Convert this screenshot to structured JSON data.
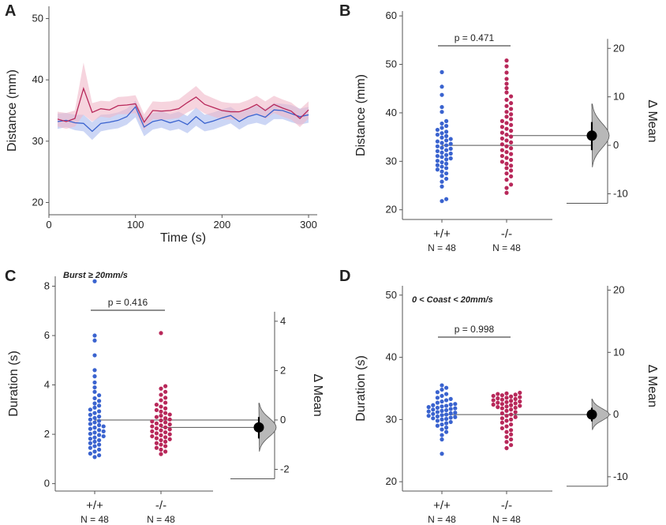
{
  "colors": {
    "wt": "#3a63cf",
    "ko": "#b8285a",
    "wt_band": "#aabbee",
    "ko_band": "#f0b8c8"
  },
  "chart_data": [
    {
      "panel": "A",
      "type": "line",
      "title": "",
      "xlabel": "Time (s)",
      "ylabel": "Distance (mm)",
      "xlim": [
        0,
        310
      ],
      "ylim": [
        18,
        52
      ],
      "xticks": [
        0,
        100,
        200,
        300
      ],
      "yticks": [
        20,
        30,
        40,
        50
      ],
      "series": [
        {
          "name": "+/+",
          "x": [
            10,
            20,
            30,
            40,
            50,
            60,
            70,
            80,
            90,
            100,
            110,
            120,
            130,
            140,
            150,
            160,
            170,
            180,
            190,
            200,
            210,
            220,
            230,
            240,
            250,
            260,
            270,
            280,
            290,
            300
          ],
          "y": [
            33.2,
            33.4,
            33.0,
            32.9,
            31.6,
            32.9,
            33.1,
            33.4,
            34.0,
            35.6,
            32.3,
            33.2,
            33.5,
            33.0,
            33.4,
            32.7,
            34.0,
            32.9,
            33.3,
            33.8,
            34.2,
            33.2,
            34.0,
            34.4,
            33.9,
            35.1,
            35.0,
            34.5,
            34.0,
            34.3
          ],
          "lo": [
            32.0,
            32.3,
            31.8,
            31.6,
            30.2,
            31.6,
            31.9,
            32.1,
            32.7,
            33.9,
            30.8,
            31.9,
            32.2,
            31.7,
            32.0,
            31.3,
            32.5,
            31.6,
            31.9,
            32.4,
            32.9,
            31.9,
            32.7,
            33.0,
            32.6,
            33.6,
            33.6,
            33.1,
            32.7,
            33.0
          ],
          "hi": [
            34.5,
            34.6,
            34.3,
            34.3,
            33.1,
            34.3,
            34.4,
            34.7,
            35.3,
            36.6,
            33.8,
            34.6,
            34.9,
            34.4,
            34.8,
            34.1,
            35.5,
            34.3,
            34.7,
            35.2,
            35.6,
            34.6,
            35.4,
            35.8,
            35.3,
            36.2,
            36.1,
            35.9,
            35.3,
            35.6
          ]
        },
        {
          "name": "-/-",
          "x": [
            10,
            20,
            30,
            40,
            50,
            60,
            70,
            80,
            90,
            100,
            110,
            120,
            130,
            140,
            150,
            160,
            170,
            180,
            190,
            200,
            210,
            220,
            230,
            240,
            250,
            260,
            270,
            280,
            290,
            300
          ],
          "y": [
            33.6,
            33.2,
            33.7,
            38.6,
            34.7,
            35.3,
            35.1,
            35.8,
            35.9,
            36.1,
            33.1,
            35.0,
            34.9,
            35.0,
            35.3,
            36.3,
            37.2,
            36.0,
            35.5,
            35.0,
            34.8,
            34.8,
            35.3,
            36.0,
            35.0,
            36.0,
            35.4,
            34.9,
            33.7,
            35.1
          ],
          "lo": [
            32.4,
            32.0,
            32.4,
            34.3,
            33.2,
            34.0,
            33.8,
            34.4,
            34.4,
            34.6,
            31.8,
            33.6,
            33.5,
            33.6,
            33.8,
            34.7,
            35.4,
            34.5,
            34.0,
            33.6,
            33.5,
            33.5,
            33.9,
            34.6,
            33.6,
            34.6,
            34.0,
            33.5,
            32.3,
            33.7
          ],
          "hi": [
            34.8,
            34.6,
            35.0,
            42.8,
            36.2,
            36.6,
            36.5,
            37.2,
            37.3,
            37.5,
            34.4,
            36.5,
            36.4,
            36.5,
            36.8,
            37.9,
            39.0,
            37.6,
            37.0,
            36.4,
            36.2,
            36.2,
            36.7,
            37.4,
            36.5,
            37.4,
            36.8,
            36.3,
            35.2,
            36.5
          ]
        }
      ]
    },
    {
      "panel": "B",
      "type": "scatter",
      "subtitle": "",
      "ylabel": "Distance (mm)",
      "y2label": "Δ Mean",
      "categories": [
        "+/+",
        "-/-"
      ],
      "n_labels": [
        "N = 48",
        "N = 48"
      ],
      "ylim": [
        18,
        61
      ],
      "yticks": [
        20,
        30,
        40,
        50,
        60
      ],
      "y2ticks": [
        -10,
        0,
        10,
        20
      ],
      "p_value": "p = 0.471",
      "means": [
        33.3,
        35.3
      ],
      "delta_mean": 2.0,
      "delta_ci": [
        -1.0,
        4.8
      ],
      "groups": [
        [
          21.8,
          22.2,
          24.8,
          25.8,
          26.4,
          27.0,
          27.5,
          27.9,
          28.3,
          28.6,
          28.9,
          29.2,
          29.5,
          29.8,
          30.1,
          30.4,
          30.6,
          30.9,
          31.1,
          31.3,
          31.6,
          31.8,
          32.1,
          32.3,
          32.6,
          32.8,
          33.1,
          33.3,
          33.6,
          33.8,
          34.1,
          34.3,
          34.6,
          34.9,
          35.2,
          35.5,
          35.8,
          36.1,
          36.5,
          36.9,
          37.3,
          37.8,
          38.3,
          40.2,
          41.2,
          43.7,
          45.4,
          48.4
        ],
        [
          23.5,
          24.5,
          25.2,
          26.2,
          26.9,
          27.5,
          28.1,
          28.6,
          29.1,
          29.5,
          29.9,
          30.3,
          30.7,
          31.1,
          31.5,
          31.9,
          32.3,
          32.7,
          33.1,
          33.5,
          33.9,
          34.3,
          34.7,
          35.1,
          35.5,
          35.9,
          36.3,
          36.7,
          37.1,
          37.5,
          37.9,
          38.3,
          38.7,
          39.2,
          39.7,
          40.2,
          40.8,
          41.4,
          42.0,
          42.7,
          43.4,
          44.2,
          45.1,
          46.0,
          47.0,
          48.3,
          49.6,
          50.8
        ]
      ]
    },
    {
      "panel": "C",
      "type": "scatter",
      "subtitle": "Burst ≥ 20mm/s",
      "ylabel": "Duration (s)",
      "y2label": "Δ Mean",
      "categories": [
        "+/+",
        "-/-"
      ],
      "n_labels": [
        "N = 48",
        "N = 48"
      ],
      "ylim": [
        -0.3,
        8.4
      ],
      "yticks": [
        0,
        2,
        4,
        6,
        8
      ],
      "y2ticks": [
        -2,
        0,
        2,
        4
      ],
      "p_value": "p = 0.416",
      "means": [
        2.58,
        2.28
      ],
      "delta_mean": -0.3,
      "delta_ci": [
        -0.75,
        0.12
      ],
      "groups": [
        [
          1.08,
          1.15,
          1.22,
          1.3,
          1.38,
          1.45,
          1.52,
          1.58,
          1.64,
          1.7,
          1.76,
          1.82,
          1.87,
          1.92,
          1.97,
          2.02,
          2.07,
          2.12,
          2.17,
          2.22,
          2.27,
          2.32,
          2.37,
          2.42,
          2.48,
          2.54,
          2.6,
          2.66,
          2.72,
          2.79,
          2.86,
          2.93,
          3.0,
          3.08,
          3.16,
          3.25,
          3.35,
          3.46,
          3.58,
          3.72,
          3.9,
          4.1,
          4.35,
          4.6,
          5.2,
          5.8,
          6.0,
          8.2
        ],
        [
          1.2,
          1.3,
          1.38,
          1.45,
          1.52,
          1.58,
          1.64,
          1.7,
          1.76,
          1.8,
          1.84,
          1.88,
          1.92,
          1.96,
          2.0,
          2.04,
          2.08,
          2.12,
          2.16,
          2.2,
          2.24,
          2.28,
          2.32,
          2.36,
          2.4,
          2.44,
          2.48,
          2.52,
          2.56,
          2.6,
          2.65,
          2.7,
          2.75,
          2.8,
          2.86,
          2.92,
          2.98,
          3.05,
          3.12,
          3.2,
          3.28,
          3.38,
          3.48,
          3.6,
          3.72,
          3.85,
          3.95,
          6.1
        ]
      ]
    },
    {
      "panel": "D",
      "type": "scatter",
      "subtitle": "0 < Coast < 20mm/s",
      "ylabel": "Duration (s)",
      "y2label": "Δ Mean",
      "categories": [
        "+/+",
        "-/-"
      ],
      "n_labels": [
        "N = 48",
        "N = 48"
      ],
      "ylim": [
        18.5,
        51.5
      ],
      "yticks": [
        20,
        30,
        40,
        50
      ],
      "y2ticks": [
        -10,
        0,
        10,
        20
      ],
      "p_value": "p = 0.998",
      "means": [
        30.8,
        30.8
      ],
      "delta_mean": 0.0,
      "delta_ci": [
        -1.1,
        1.1
      ],
      "groups": [
        [
          24.5,
          26.8,
          27.5,
          28.0,
          28.4,
          28.7,
          29.0,
          29.2,
          29.4,
          29.6,
          29.8,
          30.0,
          30.1,
          30.2,
          30.3,
          30.4,
          30.5,
          30.6,
          30.7,
          30.8,
          30.9,
          31.0,
          31.1,
          31.2,
          31.3,
          31.4,
          31.5,
          31.6,
          31.7,
          31.8,
          31.9,
          32.0,
          32.1,
          32.2,
          32.3,
          32.4,
          32.5,
          32.7,
          32.9,
          33.1,
          33.3,
          33.5,
          33.8,
          34.1,
          34.4,
          34.8,
          35.1,
          35.5
        ],
        [
          25.4,
          25.9,
          26.4,
          26.8,
          27.2,
          27.6,
          28.0,
          28.3,
          28.6,
          28.9,
          29.2,
          29.5,
          29.8,
          30.0,
          30.2,
          30.4,
          30.6,
          30.8,
          31.0,
          31.2,
          31.4,
          31.6,
          31.8,
          31.9,
          32.0,
          32.1,
          32.2,
          32.3,
          32.4,
          32.5,
          32.6,
          32.7,
          32.8,
          32.9,
          33.0,
          33.1,
          33.2,
          33.3,
          33.4,
          33.5,
          33.6,
          33.7,
          33.8,
          33.9,
          34.0,
          34.1,
          34.2,
          34.3
        ]
      ]
    }
  ]
}
